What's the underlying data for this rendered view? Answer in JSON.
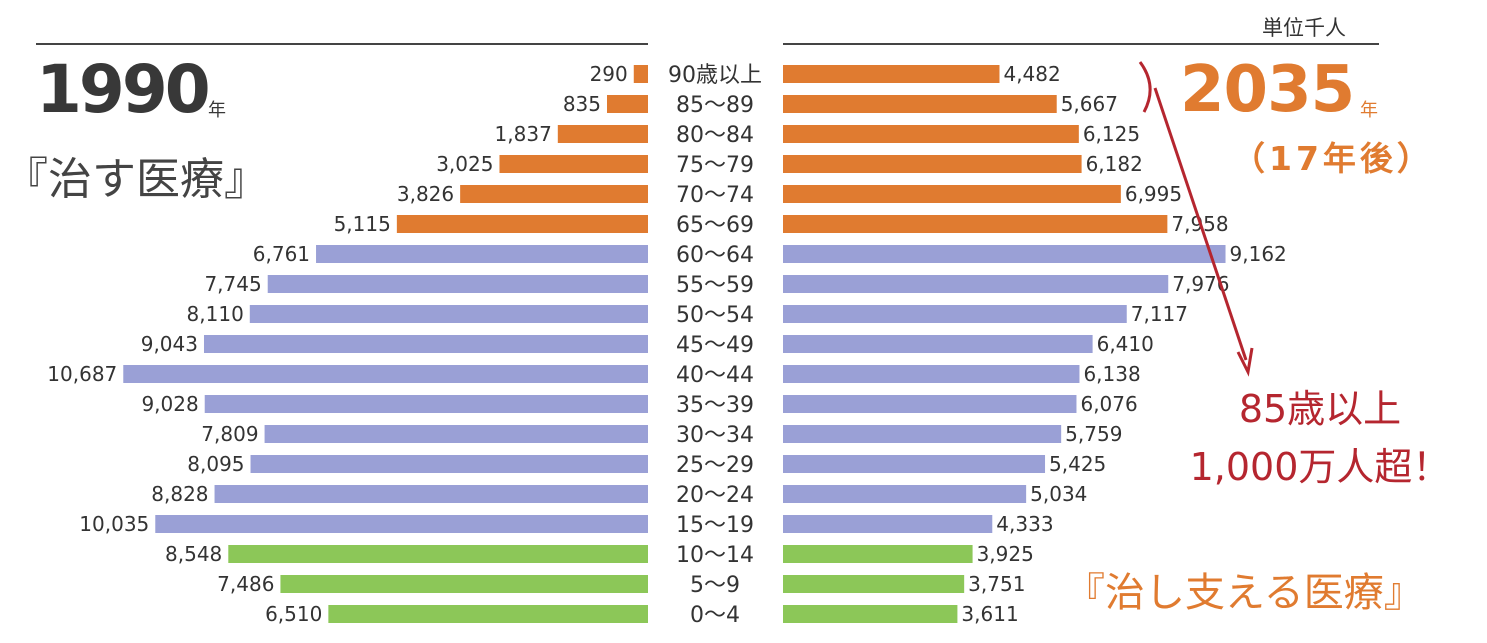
{
  "header": {
    "unit_label": "単位千人",
    "left_year": "1990",
    "right_year": "2035",
    "year_suffix": "年",
    "right_subtitle": "（17年後）",
    "left_phrase": "『治す医療』",
    "right_phrase": "『治し支える医療』"
  },
  "annotation": {
    "line1": "85歳以上",
    "line2": "1,000万人超！"
  },
  "colors": {
    "elderly": "#e07b30",
    "working": "#9aa0d6",
    "youth": "#8cc758",
    "arrow": "#b5262f",
    "label_text": "#333333"
  },
  "chart_data": {
    "type": "bar",
    "categories": [
      "90歳以上",
      "85〜89",
      "80〜84",
      "75〜79",
      "70〜74",
      "65〜69",
      "60〜64",
      "55〜59",
      "50〜54",
      "45〜49",
      "40〜44",
      "35〜39",
      "30〜34",
      "25〜29",
      "20〜24",
      "15〜19",
      "10〜14",
      "5〜9",
      "0〜4"
    ],
    "series": [
      {
        "values": [
          290,
          835,
          1837,
          3025,
          3826,
          5115,
          6761,
          7745,
          8110,
          9043,
          10687,
          9028,
          7809,
          8095,
          8828,
          10035,
          8548,
          7486,
          6510
        ]
      },
      {
        "values": [
          4482,
          5667,
          6125,
          6182,
          6995,
          7958,
          9162,
          7976,
          7117,
          6410,
          6138,
          6076,
          5759,
          5425,
          5034,
          4333,
          3925,
          3751,
          3611
        ]
      }
    ],
    "value_labels_left": [
      "290",
      "835",
      "1,837",
      "3,025",
      "3,826",
      "5,115",
      "6,761",
      "7,745",
      "8,110",
      "9,043",
      "10,687",
      "9,028",
      "7,809",
      "8,095",
      "8,828",
      "10,035",
      "8,548",
      "7,486",
      "6,510"
    ],
    "value_labels_right": [
      "4,482",
      "5,667",
      "6,125",
      "6,182",
      "6,995",
      "7,958",
      "9,162",
      "7,976",
      "7,117",
      "6,410",
      "6,138",
      "6,076",
      "5,759",
      "5,425",
      "5,034",
      "4,333",
      "3,925",
      "3,751",
      "3,611"
    ],
    "groups": [
      "elderly",
      "elderly",
      "elderly",
      "elderly",
      "elderly",
      "elderly",
      "working",
      "working",
      "working",
      "working",
      "working",
      "working",
      "working",
      "working",
      "working",
      "working",
      "youth",
      "youth",
      "youth"
    ]
  }
}
